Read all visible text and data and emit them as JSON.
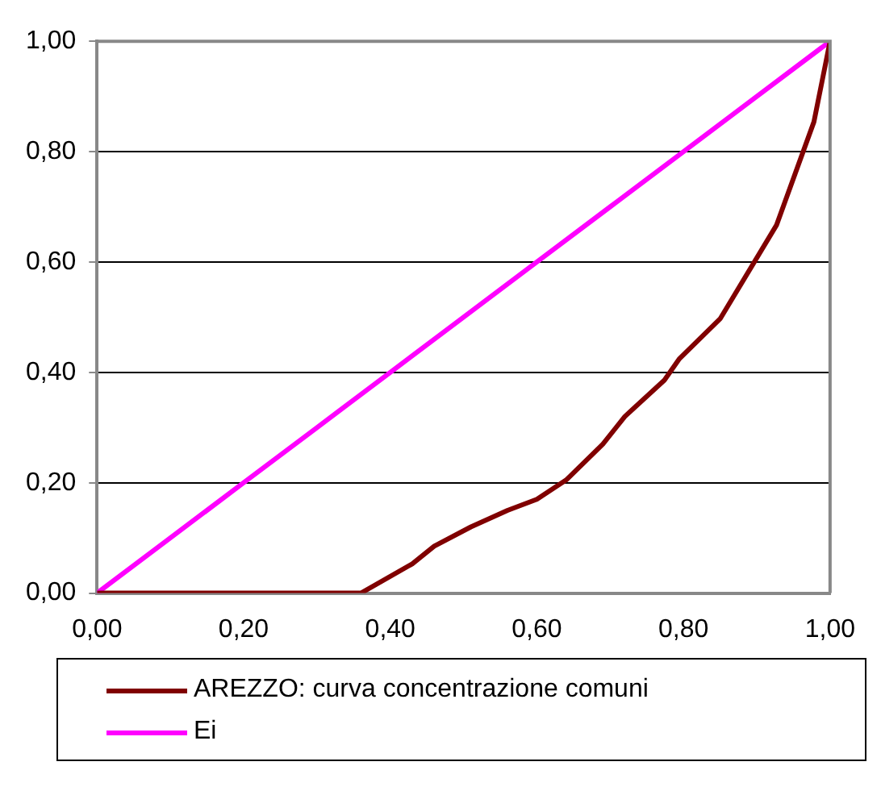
{
  "chart_data": {
    "type": "line",
    "xlim": [
      0,
      1
    ],
    "ylim": [
      0,
      1
    ],
    "xticks": [
      {
        "value": 0,
        "label": "0,00"
      },
      {
        "value": 0.2,
        "label": "0,20"
      },
      {
        "value": 0.4,
        "label": "0,40"
      },
      {
        "value": 0.6,
        "label": "0,60"
      },
      {
        "value": 0.8,
        "label": "0,80"
      },
      {
        "value": 1,
        "label": "1,00"
      }
    ],
    "yticks": [
      {
        "value": 0,
        "label": "0,00"
      },
      {
        "value": 0.2,
        "label": "0,20"
      },
      {
        "value": 0.4,
        "label": "0,40"
      },
      {
        "value": 0.6,
        "label": "0,60"
      },
      {
        "value": 0.8,
        "label": "0,80"
      },
      {
        "value": 1,
        "label": "1,00"
      }
    ],
    "grid": "y",
    "legend": "bottom",
    "marker": "none",
    "line_style": "solid",
    "series": [
      {
        "name": "AREZZO: curva concentrazione comuni",
        "color": "#800000",
        "x": [
          0,
          0.36,
          0.43,
          0.46,
          0.51,
          0.56,
          0.6,
          0.64,
          0.69,
          0.72,
          0.774,
          0.794,
          0.85,
          0.927,
          0.978,
          1
        ],
        "values": [
          0,
          0,
          0.053,
          0.085,
          0.12,
          0.15,
          0.17,
          0.205,
          0.27,
          0.32,
          0.386,
          0.424,
          0.497,
          0.667,
          0.854,
          1
        ]
      },
      {
        "name": "Ei",
        "color": "#ff00ff",
        "x": [
          0,
          0.1,
          0.2,
          0.3,
          0.4,
          0.5,
          0.6,
          0.7,
          0.8,
          0.9,
          1
        ],
        "values": [
          0,
          0.1,
          0.2,
          0.3,
          0.4,
          0.5,
          0.6,
          0.7,
          0.8,
          0.9,
          1
        ]
      }
    ]
  }
}
